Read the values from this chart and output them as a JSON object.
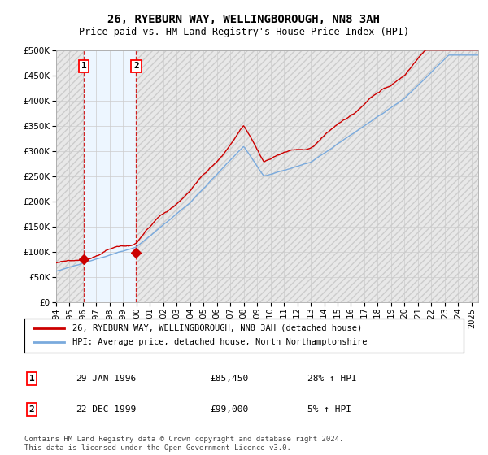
{
  "title": "26, RYEBURN WAY, WELLINGBOROUGH, NN8 3AH",
  "subtitle": "Price paid vs. HM Land Registry's House Price Index (HPI)",
  "legend_line1": "26, RYEBURN WAY, WELLINGBOROUGH, NN8 3AH (detached house)",
  "legend_line2": "HPI: Average price, detached house, North Northamptonshire",
  "footer": "Contains HM Land Registry data © Crown copyright and database right 2024.\nThis data is licensed under the Open Government Licence v3.0.",
  "sale1_date": "29-JAN-1996",
  "sale1_price": 85450,
  "sale1_hpi": "28% ↑ HPI",
  "sale1_x": 1996.08,
  "sale2_date": "22-DEC-1999",
  "sale2_price": 99000,
  "sale2_hpi": "5% ↑ HPI",
  "sale2_x": 1999.97,
  "price_color": "#cc0000",
  "hpi_color": "#7aaadd",
  "ylim": [
    0,
    500000
  ],
  "xlim_start": 1994.0,
  "xlim_end": 2025.5,
  "yticks": [
    0,
    50000,
    100000,
    150000,
    200000,
    250000,
    300000,
    350000,
    400000,
    450000,
    500000
  ],
  "xticks": [
    1994,
    1995,
    1996,
    1997,
    1998,
    1999,
    2000,
    2001,
    2002,
    2003,
    2004,
    2005,
    2006,
    2007,
    2008,
    2009,
    2010,
    2011,
    2012,
    2013,
    2014,
    2015,
    2016,
    2017,
    2018,
    2019,
    2020,
    2021,
    2022,
    2023,
    2024,
    2025
  ]
}
